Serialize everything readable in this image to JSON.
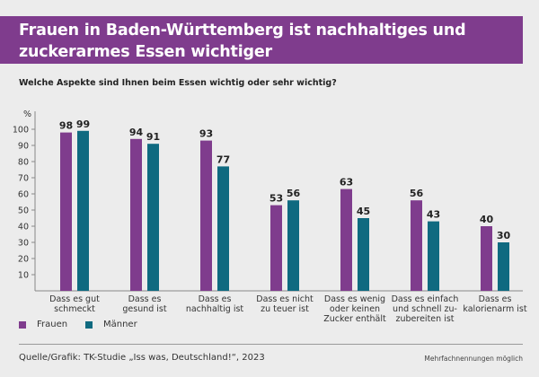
{
  "header": {
    "title_line1": "Frauen in Baden-Württemberg ist nachhaltiges und",
    "title_line2": "zuckerarmes Essen wichtiger",
    "subtitle": "Welche Aspekte sind Ihnen beim Essen wichtig oder sehr wichtig?"
  },
  "colors": {
    "frauen": "#7f3c8d",
    "maenner": "#0f6a80",
    "banner": "#7f3c8d"
  },
  "legend": [
    {
      "label": "Frauen",
      "color": "#7f3c8d"
    },
    {
      "label": "Männer",
      "color": "#0f6a80"
    }
  ],
  "footer": {
    "source": "Quelle/Grafik: TK-Studie „Iss was, Deutschland!“, 2023",
    "note": "Mehrfachnennungen möglich"
  },
  "chart_data": {
    "type": "bar",
    "title": "Frauen in Baden-Württemberg ist nachhaltiges und zuckerarmes Essen wichtiger",
    "subtitle": "Welche Aspekte sind Ihnen beim Essen wichtig oder sehr wichtig?",
    "ylabel": "%",
    "xlabel": "",
    "ylim": [
      0,
      100
    ],
    "yticks": [
      10,
      20,
      30,
      40,
      50,
      60,
      70,
      80,
      90,
      100
    ],
    "grid": false,
    "legend_position": "bottom-left",
    "categories": [
      [
        "Dass es gut",
        "schmeckt"
      ],
      [
        "Dass es",
        "gesund ist"
      ],
      [
        "Dass es",
        "nachhaltig ist"
      ],
      [
        "Dass es nicht",
        "zu teuer ist"
      ],
      [
        "Dass es wenig",
        "oder keinen",
        "Zucker enthält"
      ],
      [
        "Dass es einfach",
        "und schnell zu-",
        "zubereiten ist"
      ],
      [
        "Dass es",
        "kalorienarm ist"
      ]
    ],
    "series": [
      {
        "name": "Frauen",
        "values": [
          98,
          94,
          93,
          53,
          63,
          56,
          40
        ]
      },
      {
        "name": "Männer",
        "values": [
          99,
          91,
          77,
          56,
          45,
          43,
          30
        ]
      }
    ]
  }
}
